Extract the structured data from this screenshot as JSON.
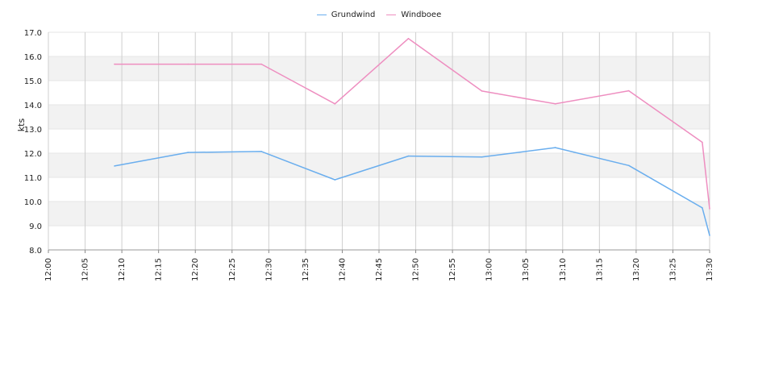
{
  "chart_data": {
    "type": "line",
    "ylabel": "kts",
    "ylim": [
      8.0,
      17.0
    ],
    "yticks": [
      "8.0",
      "9.0",
      "10.0",
      "11.0",
      "12.0",
      "13.0",
      "14.0",
      "15.0",
      "16.0",
      "17.0"
    ],
    "xlim": [
      "12:00",
      "13:30"
    ],
    "xticks": [
      "12:00",
      "12:05",
      "12:10",
      "12:15",
      "12:20",
      "12:25",
      "12:30",
      "12:35",
      "12:40",
      "12:45",
      "12:50",
      "12:55",
      "13:00",
      "13:05",
      "13:10",
      "13:15",
      "13:20",
      "13:25",
      "13:30"
    ],
    "grid": true,
    "legend_position": "top-center",
    "series": [
      {
        "name": "Grundwind",
        "color": "#6aaeee",
        "x": [
          "12:09",
          "12:19",
          "12:29",
          "12:39",
          "12:49",
          "12:59",
          "13:09",
          "13:19",
          "13:29",
          "13:30"
        ],
        "values": [
          11.47,
          12.03,
          12.07,
          10.9,
          11.88,
          11.84,
          12.23,
          11.49,
          9.74,
          8.6
        ]
      },
      {
        "name": "Windboee",
        "color": "#ee8ec0",
        "x": [
          "12:09",
          "12:19",
          "12:29",
          "12:39",
          "12:49",
          "12:59",
          "13:09",
          "13:19",
          "13:29",
          "13:30"
        ],
        "values": [
          15.68,
          15.68,
          15.68,
          14.04,
          16.74,
          14.57,
          14.04,
          14.58,
          12.45,
          9.7
        ]
      }
    ]
  }
}
